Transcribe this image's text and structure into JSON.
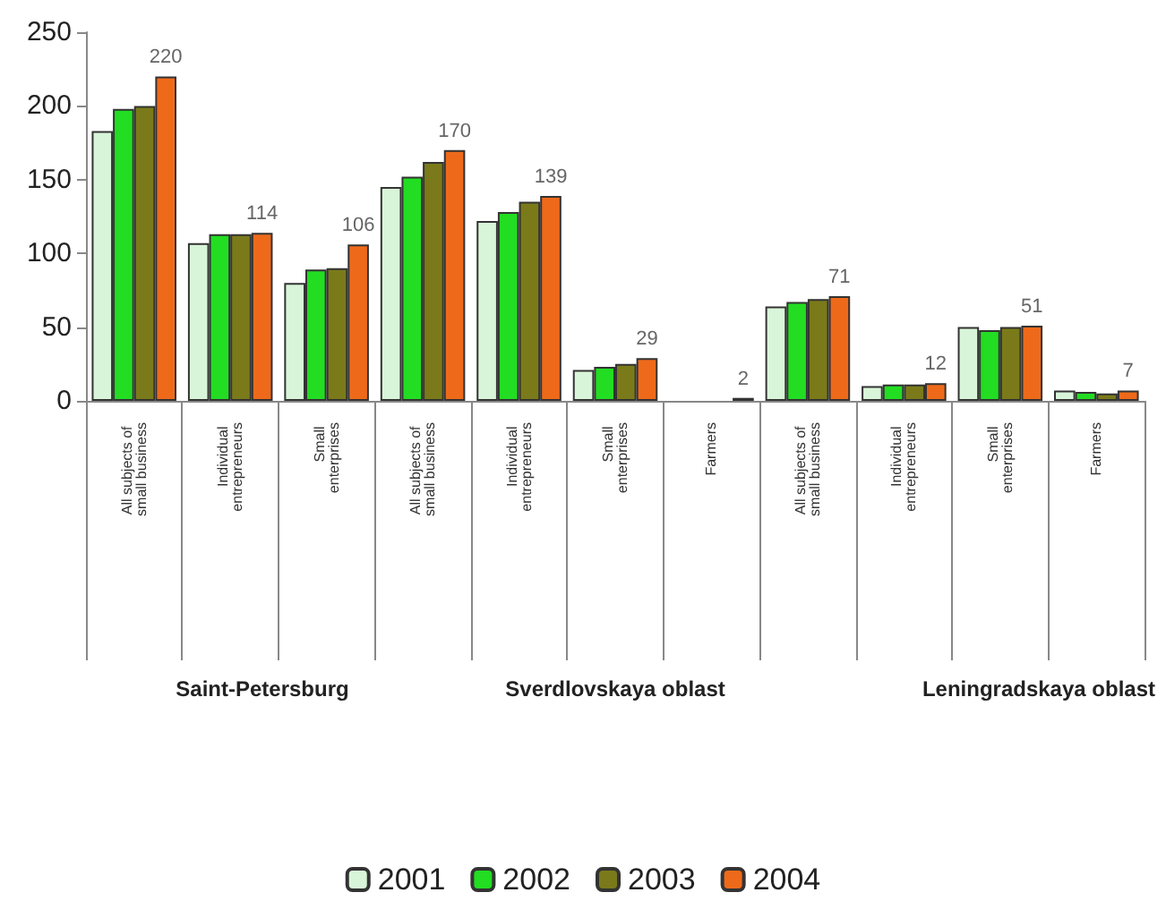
{
  "chart_data": {
    "type": "bar",
    "categories": [
      "All subjects of small business",
      "Individual entrepreneurs",
      "Small enterprises",
      "All subjects of small business",
      "Individual entrepreneurs",
      "Small enterprises",
      "Farmers",
      "All subjects of small business",
      "Individual entrepreneurs",
      "Small enterprises",
      "Farmers"
    ],
    "series": [
      {
        "name": "2001",
        "color": "#d9f5d9",
        "values": [
          183,
          107,
          80,
          145,
          122,
          21,
          null,
          64,
          10,
          50,
          7
        ]
      },
      {
        "name": "2002",
        "color": "#22dd22",
        "values": [
          198,
          113,
          89,
          152,
          128,
          23,
          null,
          67,
          11,
          48,
          6
        ]
      },
      {
        "name": "2003",
        "color": "#7a7a1a",
        "values": [
          200,
          113,
          90,
          162,
          135,
          25,
          null,
          69,
          11,
          50,
          5
        ]
      },
      {
        "name": "2004",
        "color": "#ee6a1a",
        "values": [
          220,
          114,
          106,
          170,
          139,
          29,
          2,
          71,
          12,
          51,
          7
        ],
        "value_labels": [
          "220",
          "114",
          "106",
          "170",
          "139",
          "29",
          "2",
          "71",
          "12",
          "51",
          "7"
        ]
      }
    ],
    "annotations": [
      "Saint-Petersburg",
      "Sverdlovskaya oblast",
      "Leningradskaya oblast"
    ],
    "ylim": [
      0,
      250
    ],
    "yticks": [
      0,
      50,
      100,
      150,
      200,
      250
    ],
    "grid": false,
    "legend": "bottom"
  }
}
